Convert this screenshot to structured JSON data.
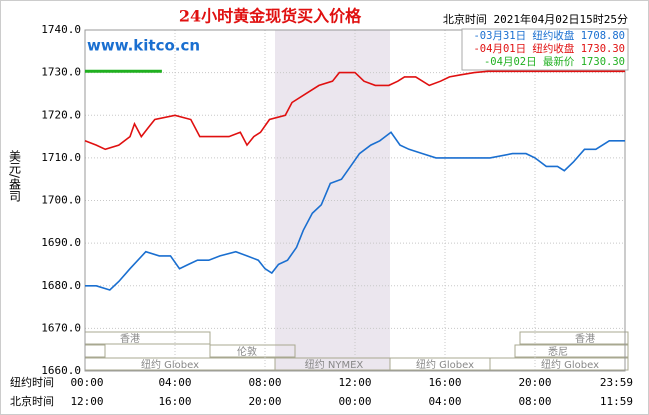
{
  "chart_data": {
    "type": "line",
    "title": "24小时黄金现货买入价格",
    "subtitle": "北京时间 2021年04月02日15时25分",
    "watermark": "www.kitco.cn",
    "ylabel": "美元/盎司",
    "xlabel": "纽约时间",
    "x2label": "北京时间",
    "xlim": [
      0,
      24
    ],
    "ylim": [
      1660,
      1740
    ],
    "grid": true,
    "yticks": [
      {
        "value": 1660,
        "label": "1660.0"
      },
      {
        "value": 1670,
        "label": "1670.0"
      },
      {
        "value": 1680,
        "label": "1680.0"
      },
      {
        "value": 1690,
        "label": "1690.0"
      },
      {
        "value": 1700,
        "label": "1700.0"
      },
      {
        "value": 1710,
        "label": "1710.0"
      },
      {
        "value": 1720,
        "label": "1720.0"
      },
      {
        "value": 1730,
        "label": "1730.0"
      },
      {
        "value": 1740,
        "label": "1740.0"
      }
    ],
    "xticks": [
      {
        "value": 0,
        "label": "00:00"
      },
      {
        "value": 4,
        "label": "04:00"
      },
      {
        "value": 8,
        "label": "08:00"
      },
      {
        "value": 12,
        "label": "12:00"
      },
      {
        "value": 16,
        "label": "16:00"
      },
      {
        "value": 20,
        "label": "20:00"
      },
      {
        "value": 23.98,
        "label": "23:59"
      }
    ],
    "x2ticks": [
      {
        "value": 0,
        "label": "12:00"
      },
      {
        "value": 4,
        "label": "16:00"
      },
      {
        "value": 8,
        "label": "20:00"
      },
      {
        "value": 12,
        "label": "00:00"
      },
      {
        "value": 16,
        "label": "04:00"
      },
      {
        "value": 20,
        "label": "08:00"
      },
      {
        "value": 23.98,
        "label": "11:59"
      }
    ],
    "sessions": [
      "香港",
      "伦敦",
      "纽约 Globex",
      "纽约 NYMEX",
      "纽约 Globex",
      "香港",
      "悉尼",
      "纽约 Globex"
    ],
    "series": [
      {
        "name": "-03月31日 纽约收盘 1708.80",
        "color": "#1a6fd0",
        "x": [
          0,
          0.5,
          1.1,
          1.5,
          2.0,
          2.7,
          3.3,
          3.8,
          4.2,
          4.6,
          5.0,
          5.5,
          6.0,
          6.7,
          7.2,
          7.7,
          8.0,
          8.3,
          8.6,
          9.0,
          9.4,
          9.7,
          10.1,
          10.5,
          10.9,
          11.4,
          11.8,
          12.2,
          12.7,
          13.1,
          13.6,
          14.0,
          14.4,
          15.0,
          15.6,
          16.0,
          17.0,
          18.0,
          19.0,
          19.6,
          20.0,
          20.5,
          21.0,
          21.3,
          21.7,
          22.2,
          22.7,
          23.3,
          24
        ],
        "values": [
          1680,
          1680,
          1679,
          1681,
          1684,
          1688,
          1687,
          1687,
          1684,
          1685,
          1686,
          1686,
          1687,
          1688,
          1687,
          1686,
          1684,
          1683,
          1685,
          1686,
          1689,
          1693,
          1697,
          1699,
          1704,
          1705,
          1708,
          1711,
          1713,
          1714,
          1716,
          1713,
          1712,
          1711,
          1710,
          1710,
          1710,
          1710,
          1711,
          1711,
          1710,
          1708,
          1708,
          1707,
          1709,
          1712,
          1712,
          1714,
          1714
        ]
      },
      {
        "name": "-04月01日 纽约收盘 1730.30",
        "color": "#e01010",
        "x": [
          0,
          0.5,
          0.9,
          1.5,
          2.0,
          2.2,
          2.5,
          2.8,
          3.1,
          4.0,
          4.7,
          5.1,
          5.6,
          6.4,
          6.9,
          7.2,
          7.5,
          7.8,
          8.2,
          8.9,
          9.2,
          9.8,
          10.4,
          11.0,
          11.3,
          12.0,
          12.4,
          12.9,
          13.5,
          13.9,
          14.2,
          14.7,
          15.3,
          15.8,
          16.2,
          16.7,
          17.3,
          17.9,
          24
        ],
        "values": [
          1714,
          1713,
          1712,
          1713,
          1715,
          1718,
          1715,
          1717,
          1719,
          1720,
          1719,
          1715,
          1715,
          1715,
          1716,
          1713,
          1715,
          1716,
          1719,
          1720,
          1723,
          1725,
          1727,
          1728,
          1730,
          1730,
          1728,
          1727,
          1727,
          1728,
          1729,
          1729,
          1727,
          1728,
          1729,
          1729.5,
          1730,
          1730.3,
          1730.3
        ]
      },
      {
        "name": "-04月02日 最新价 1730.30",
        "color": "#20b020",
        "x": [
          0,
          3.42
        ],
        "values": [
          1730.3,
          1730.3
        ]
      }
    ]
  }
}
